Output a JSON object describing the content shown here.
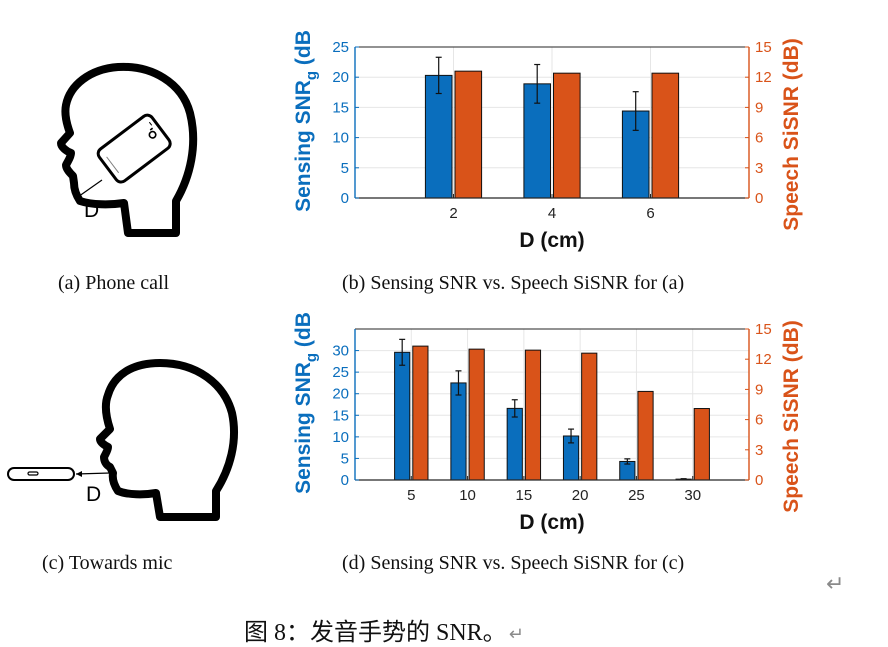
{
  "panels": {
    "a": {
      "caption": "(a)  Phone call",
      "distance_label": "D"
    },
    "b": {
      "caption": "(b)  Sensing SNR vs. Speech SiSNR for (a)"
    },
    "c": {
      "caption": "(c)  Towards mic",
      "distance_label": "D"
    },
    "d": {
      "caption": "(d)  Sensing SNR vs. Speech SiSNR for (c)"
    }
  },
  "figure_caption": "图 8：发音手势的  SNR。",
  "return_mark": "↵",
  "colors": {
    "sensing": "#0a6ebd",
    "speech": "#d95319",
    "axis": "#262626",
    "grid": "#e6e6e6"
  },
  "chart_data": [
    {
      "id": "b",
      "type": "bar",
      "xlabel": "D (cm)",
      "ylabel_left": "Sensing SNR",
      "ylabel_left_subscript": "g",
      "ylabel_left_suffix": " (dB)",
      "ylabel_right": "Speech SiSNR (dB)",
      "categories": [
        "2",
        "4",
        "6"
      ],
      "x_positions": [
        2,
        4,
        6
      ],
      "xlim": [
        0,
        8
      ],
      "ylim_left": [
        0,
        25
      ],
      "ylim_right": [
        0,
        15
      ],
      "yticks_left": [
        "0",
        "5",
        "10",
        "15",
        "20",
        "25"
      ],
      "yticks_right": [
        "0",
        "3",
        "6",
        "9",
        "12",
        "15"
      ],
      "grid": true,
      "series": [
        {
          "name": "Sensing SNR",
          "axis": "left",
          "values": [
            20.3,
            18.9,
            14.4
          ],
          "error": [
            3.0,
            3.2,
            3.2
          ]
        },
        {
          "name": "Speech SiSNR",
          "axis": "right",
          "values": [
            12.6,
            12.4,
            12.4
          ]
        }
      ]
    },
    {
      "id": "d",
      "type": "bar",
      "xlabel": "D (cm)",
      "ylabel_left": "Sensing SNR",
      "ylabel_left_subscript": "g",
      "ylabel_left_suffix": " (dB)",
      "ylabel_right": "Speech SiSNR (dB)",
      "categories": [
        "5",
        "10",
        "15",
        "20",
        "25",
        "30"
      ],
      "x_positions": [
        5,
        10,
        15,
        20,
        25,
        30
      ],
      "xlim": [
        0,
        35
      ],
      "ylim_left": [
        0,
        35
      ],
      "ylim_right": [
        0,
        15
      ],
      "yticks_left": [
        "0",
        "5",
        "10",
        "15",
        "20",
        "25",
        "30"
      ],
      "yticks_right": [
        "0",
        "3",
        "6",
        "9",
        "12",
        "15"
      ],
      "grid": true,
      "series": [
        {
          "name": "Sensing SNR",
          "axis": "left",
          "values": [
            29.6,
            22.5,
            16.6,
            10.2,
            4.3,
            0.2
          ],
          "error": [
            3.0,
            2.8,
            2.0,
            1.6,
            0.6,
            0.1
          ]
        },
        {
          "name": "Speech SiSNR",
          "axis": "right",
          "values": [
            13.3,
            13.0,
            12.9,
            12.6,
            8.8,
            7.1
          ]
        }
      ]
    }
  ]
}
